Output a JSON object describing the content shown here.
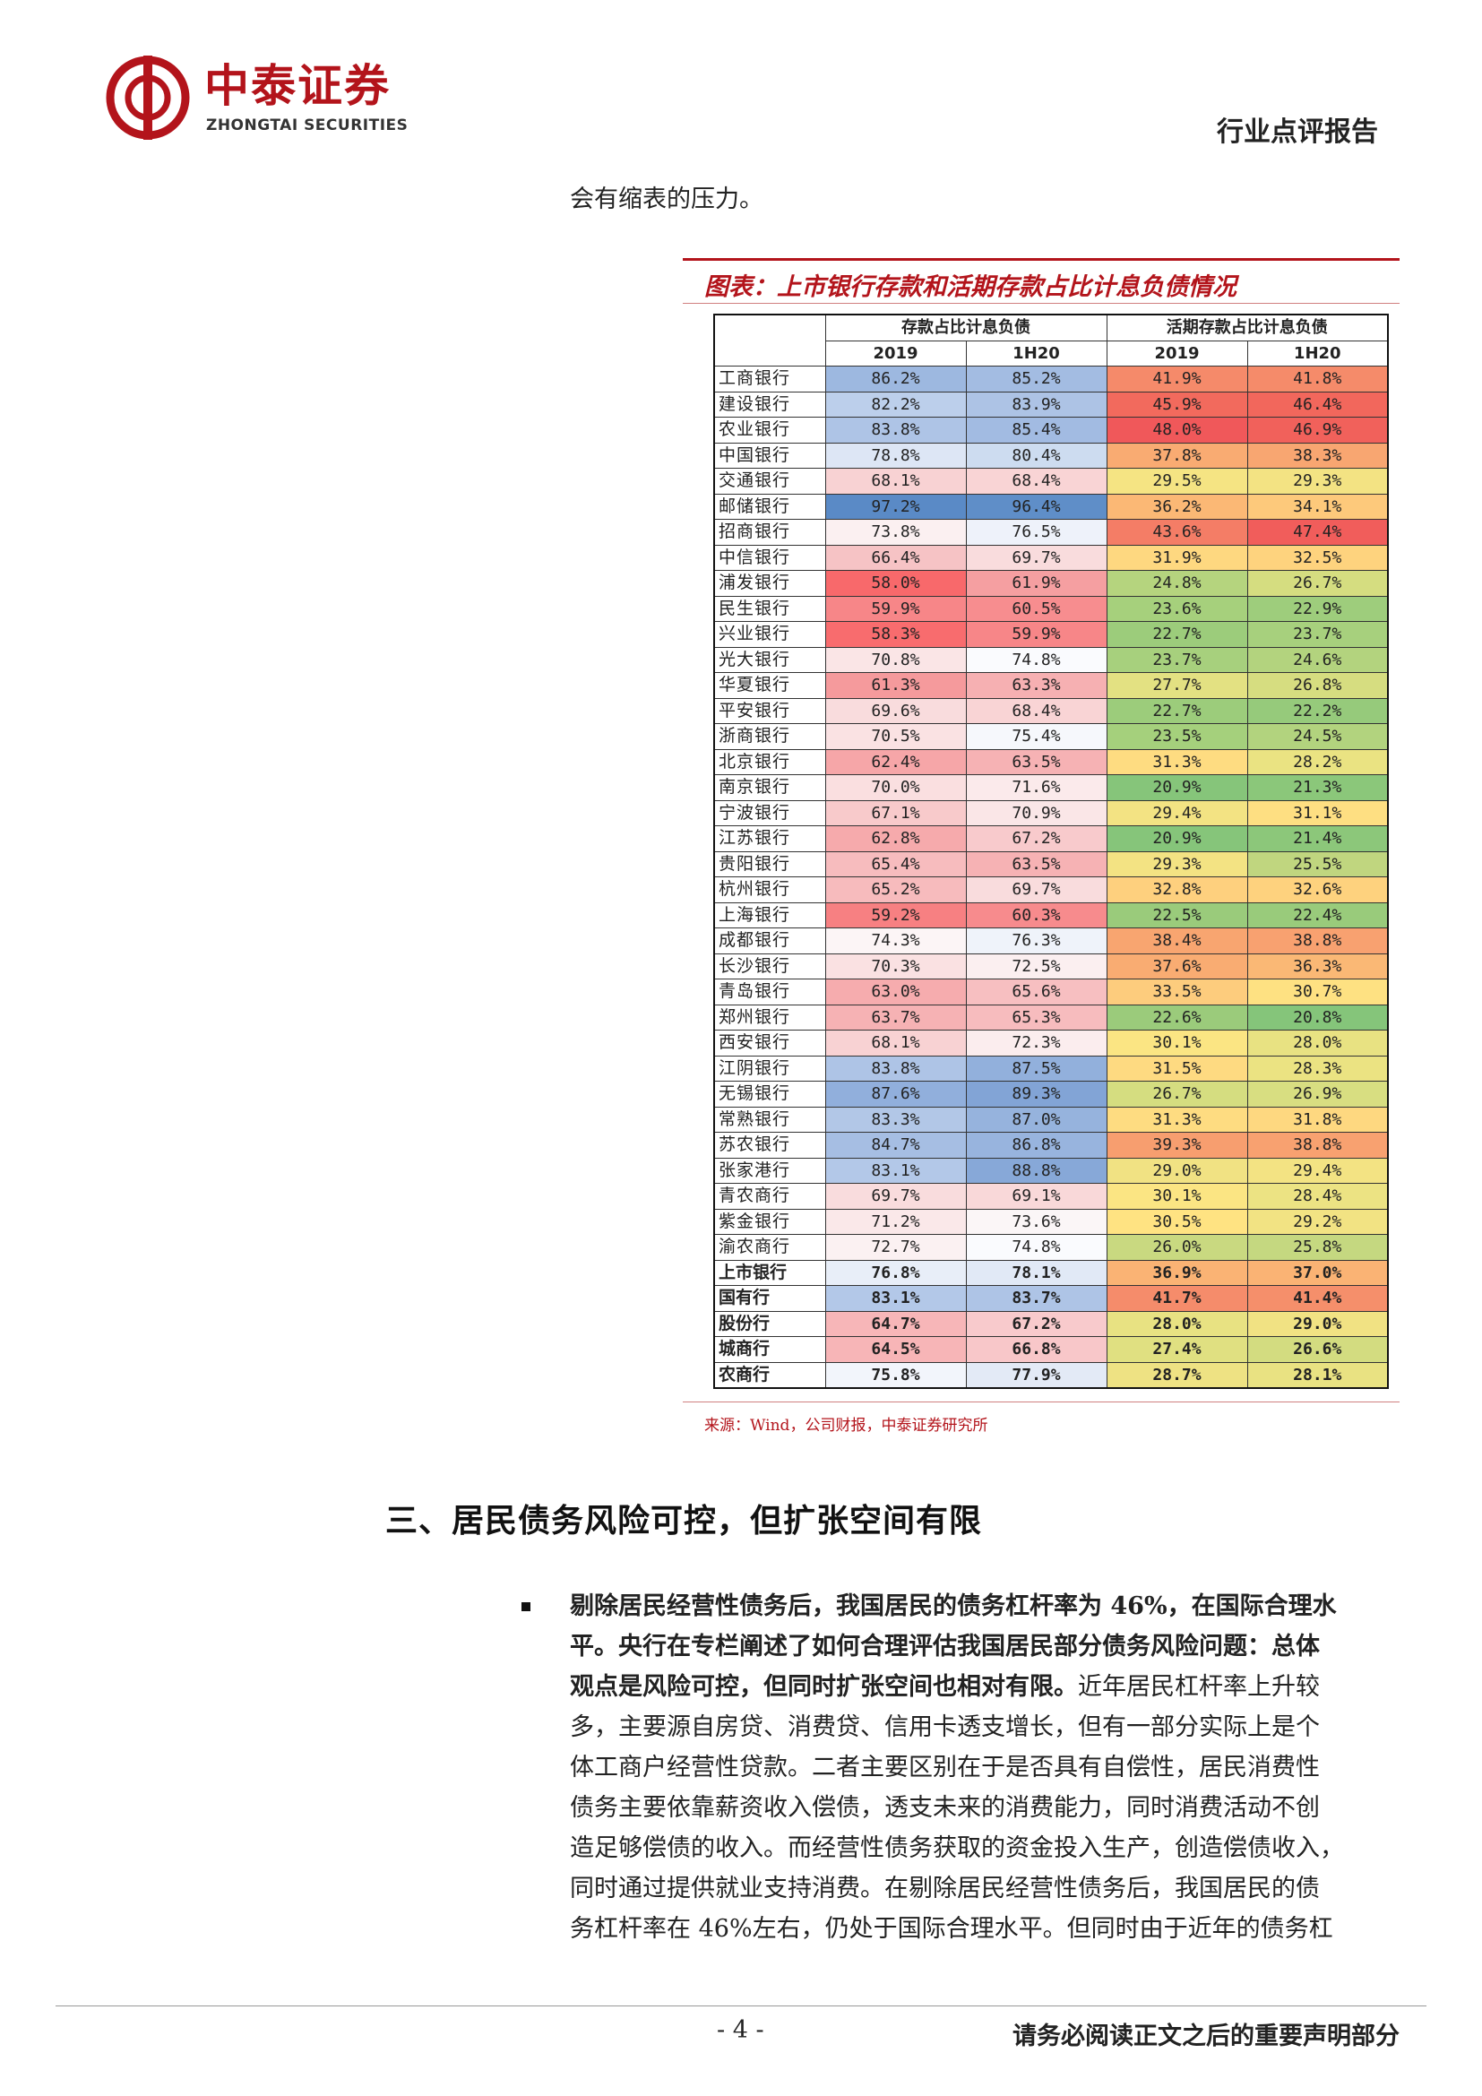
{
  "header": {
    "logo_cn": "中泰证券",
    "logo_en": "ZHONGTAI SECURITIES",
    "report_type": "行业点评报告"
  },
  "intro_line": "会有缩表的压力。",
  "figure": {
    "title": "图表：上市银行存款和活期存款占比计息负债情况",
    "source": "来源：Wind，公司财报，中泰证券研究所",
    "group_headers": [
      "存款占比计息负债",
      "活期存款占比计息负债"
    ],
    "sub_headers": [
      "2019",
      "1H20",
      "2019",
      "1H20"
    ],
    "rows": [
      {
        "bank": "工商银行",
        "values": [
          "86.2%",
          "85.2%",
          "41.9%",
          "41.8%"
        ],
        "colors": [
          "#9db8e0",
          "#a3bce2",
          "#f58a6a",
          "#f58b6a"
        ]
      },
      {
        "bank": "建设银行",
        "values": [
          "82.2%",
          "83.9%",
          "45.9%",
          "46.4%"
        ],
        "colors": [
          "#bccfeb",
          "#adc3e5",
          "#f26a5d",
          "#f2675c"
        ]
      },
      {
        "bank": "农业银行",
        "values": [
          "83.8%",
          "85.4%",
          "48.0%",
          "46.9%"
        ],
        "colors": [
          "#aec4e6",
          "#a2bbe2",
          "#f0585a",
          "#f1615b"
        ]
      },
      {
        "bank": "中国银行",
        "values": [
          "78.8%",
          "80.4%",
          "37.8%",
          "38.3%"
        ],
        "colors": [
          "#dde6f5",
          "#cddcf0",
          "#f9ab72",
          "#f8a671"
        ]
      },
      {
        "bank": "交通银行",
        "values": [
          "68.1%",
          "68.4%",
          "29.5%",
          "29.3%"
        ],
        "colors": [
          "#f8d2d3",
          "#f9d4d5",
          "#f5e483",
          "#f3e383"
        ]
      },
      {
        "bank": "邮储银行",
        "values": [
          "97.2%",
          "96.4%",
          "36.2%",
          "34.1%"
        ],
        "colors": [
          "#5a8ac6",
          "#5f8ec8",
          "#fbb875",
          "#fdc97b"
        ]
      },
      {
        "bank": "招商银行",
        "values": [
          "73.8%",
          "76.5%",
          "43.6%",
          "47.4%"
        ],
        "colors": [
          "#fbf0f1",
          "#eef2fa",
          "#f47d66",
          "#f15d5b"
        ]
      },
      {
        "bank": "中信银行",
        "values": [
          "66.4%",
          "69.7%",
          "31.9%",
          "32.5%"
        ],
        "colors": [
          "#f6c3c5",
          "#f9dcdd",
          "#fed880",
          "#fed37e"
        ]
      },
      {
        "bank": "浦发银行",
        "values": [
          "58.0%",
          "61.9%",
          "24.8%",
          "26.7%"
        ],
        "colors": [
          "#f8696b",
          "#f59fa1",
          "#b5d47e",
          "#d5dd80"
        ]
      },
      {
        "bank": "民生银行",
        "values": [
          "59.9%",
          "60.5%",
          "23.6%",
          "22.9%"
        ],
        "colors": [
          "#f78688",
          "#f78d8f",
          "#a6d07c",
          "#9ecd7c"
        ]
      },
      {
        "bank": "兴业银行",
        "values": [
          "58.3%",
          "59.9%",
          "22.7%",
          "23.7%"
        ],
        "colors": [
          "#f86c6e",
          "#f78688",
          "#9ccc7b",
          "#a7d07d"
        ]
      },
      {
        "bank": "光大银行",
        "values": [
          "70.8%",
          "74.8%",
          "23.7%",
          "24.6%"
        ],
        "colors": [
          "#fae5e6",
          "#fafbfe",
          "#a7d07d",
          "#b3d37e"
        ]
      },
      {
        "bank": "华夏银行",
        "values": [
          "61.3%",
          "63.3%",
          "27.7%",
          "26.8%"
        ],
        "colors": [
          "#f59a9c",
          "#f6b0b2",
          "#e3e182",
          "#d6dd80"
        ]
      },
      {
        "bank": "平安银行",
        "values": [
          "69.6%",
          "68.4%",
          "22.7%",
          "22.2%"
        ],
        "colors": [
          "#f9dcdd",
          "#f9d4d5",
          "#9ccc7b",
          "#96ca7b"
        ]
      },
      {
        "bank": "浙商银行",
        "values": [
          "70.5%",
          "75.4%",
          "23.5%",
          "24.5%"
        ],
        "colors": [
          "#fae2e3",
          "#f6f8fc",
          "#a5d07c",
          "#b2d37e"
        ]
      },
      {
        "bank": "北京银行",
        "values": [
          "62.4%",
          "63.5%",
          "31.3%",
          "28.2%"
        ],
        "colors": [
          "#f6a6a8",
          "#f6b2b4",
          "#fedc81",
          "#eae382"
        ]
      },
      {
        "bank": "南京银行",
        "values": [
          "70.0%",
          "71.6%",
          "20.9%",
          "21.3%"
        ],
        "colors": [
          "#fadfe0",
          "#fbeaeb",
          "#86c57a",
          "#8bc77a"
        ]
      },
      {
        "bank": "宁波银行",
        "values": [
          "67.1%",
          "70.9%",
          "29.4%",
          "31.1%"
        ],
        "colors": [
          "#f8cacb",
          "#fae6e7",
          "#f3e383",
          "#fedf82"
        ]
      },
      {
        "bank": "江苏银行",
        "values": [
          "62.8%",
          "67.2%",
          "20.9%",
          "21.4%"
        ],
        "colors": [
          "#f6aaac",
          "#f8cacc",
          "#86c57a",
          "#8cc77a"
        ]
      },
      {
        "bank": "贵阳银行",
        "values": [
          "65.4%",
          "63.5%",
          "29.3%",
          "25.5%"
        ],
        "colors": [
          "#f7bcbe",
          "#f6b2b4",
          "#f3e383",
          "#c0d67f"
        ]
      },
      {
        "bank": "杭州银行",
        "values": [
          "65.2%",
          "69.7%",
          "32.8%",
          "32.6%"
        ],
        "colors": [
          "#f7bbbd",
          "#f9dcdd",
          "#fed07e",
          "#fed27e"
        ]
      },
      {
        "bank": "上海银行",
        "values": [
          "59.2%",
          "60.3%",
          "22.5%",
          "22.4%"
        ],
        "colors": [
          "#f78082",
          "#f78b8d",
          "#9acb7b",
          "#99cb7b"
        ]
      },
      {
        "bank": "成都银行",
        "values": [
          "74.3%",
          "76.3%",
          "38.4%",
          "38.8%"
        ],
        "colors": [
          "#fcf5f6",
          "#eff3fa",
          "#f8a570",
          "#f8a170"
        ]
      },
      {
        "bank": "长沙银行",
        "values": [
          "70.3%",
          "72.5%",
          "37.6%",
          "36.3%"
        ],
        "colors": [
          "#fae1e2",
          "#fbeff0",
          "#f9ac72",
          "#fab875"
        ]
      },
      {
        "bank": "青岛银行",
        "values": [
          "63.0%",
          "65.6%",
          "33.5%",
          "30.7%"
        ],
        "colors": [
          "#f6acae",
          "#f7bfc1",
          "#fdcc7d",
          "#fee182"
        ]
      },
      {
        "bank": "郑州银行",
        "values": [
          "63.7%",
          "65.3%",
          "22.6%",
          "20.8%"
        ],
        "colors": [
          "#f6b2b4",
          "#f7bcbe",
          "#9bcb7b",
          "#85c57a"
        ]
      },
      {
        "bank": "西安银行",
        "values": [
          "68.1%",
          "72.3%",
          "30.1%",
          "28.0%"
        ],
        "colors": [
          "#f8d2d3",
          "#fbedee",
          "#fbe583",
          "#e8e282"
        ]
      },
      {
        "bank": "江阴银行",
        "values": [
          "83.8%",
          "87.5%",
          "31.5%",
          "28.3%"
        ],
        "colors": [
          "#aec4e6",
          "#92b0dc",
          "#feda81",
          "#ebe382"
        ]
      },
      {
        "bank": "无锡银行",
        "values": [
          "87.6%",
          "89.3%",
          "26.7%",
          "26.9%"
        ],
        "colors": [
          "#91afdc",
          "#82a4d6",
          "#d5dd80",
          "#d8de81"
        ]
      },
      {
        "bank": "常熟银行",
        "values": [
          "83.3%",
          "87.0%",
          "31.3%",
          "31.8%"
        ],
        "colors": [
          "#b2c7e7",
          "#96b3dd",
          "#fedc81",
          "#fed880"
        ]
      },
      {
        "bank": "苏农银行",
        "values": [
          "84.7%",
          "86.8%",
          "39.3%",
          "38.8%"
        ],
        "colors": [
          "#a6bee3",
          "#98b4de",
          "#f79e6f",
          "#f8a170"
        ]
      },
      {
        "bank": "张家港行",
        "values": [
          "83.1%",
          "88.8%",
          "29.0%",
          "29.4%"
        ],
        "colors": [
          "#b3c8e8",
          "#87a8d8",
          "#f1e283",
          "#f3e383"
        ]
      },
      {
        "bank": "青农商行",
        "values": [
          "69.7%",
          "69.1%",
          "30.1%",
          "28.4%"
        ],
        "colors": [
          "#f9dcdd",
          "#f9d8d9",
          "#fbe583",
          "#ece383"
        ]
      },
      {
        "bank": "紫金银行",
        "values": [
          "71.2%",
          "73.6%",
          "30.5%",
          "29.2%"
        ],
        "colors": [
          "#fae8e9",
          "#fbf6f7",
          "#ffe382",
          "#f2e383"
        ]
      },
      {
        "bank": "渝农商行",
        "values": [
          "72.7%",
          "74.8%",
          "26.0%",
          "25.8%"
        ],
        "colors": [
          "#fbf1f2",
          "#fafbfe",
          "#c9d980",
          "#c5d880"
        ]
      },
      {
        "bank": "上市银行",
        "values": [
          "76.8%",
          "78.1%",
          "36.9%",
          "37.0%"
        ],
        "colors": [
          "#e8eef8",
          "#e1e9f6",
          "#fab374",
          "#fab374"
        ]
      },
      {
        "bank": "国有行",
        "values": [
          "83.1%",
          "83.7%",
          "41.7%",
          "41.4%"
        ],
        "colors": [
          "#b3c8e8",
          "#aec4e6",
          "#f58c6b",
          "#f58f6b"
        ]
      },
      {
        "bank": "股份行",
        "values": [
          "64.7%",
          "67.2%",
          "28.0%",
          "29.0%"
        ],
        "colors": [
          "#f7b6b8",
          "#f8cacc",
          "#e8e282",
          "#f1e283"
        ]
      },
      {
        "bank": "城商行",
        "values": [
          "64.5%",
          "66.8%",
          "27.4%",
          "26.6%"
        ],
        "colors": [
          "#f7b5b7",
          "#f8c7c9",
          "#e0e081",
          "#d3dc80"
        ]
      },
      {
        "bank": "农商行",
        "values": [
          "75.8%",
          "77.9%",
          "28.7%",
          "28.1%"
        ],
        "colors": [
          "#f2f5fb",
          "#e3eaf6",
          "#eee283",
          "#e9e282"
        ]
      }
    ],
    "summary_start_index": 35
  },
  "section_title": "三、居民债务风险可控，但扩张空间有限",
  "bullet_paragraph": {
    "lines": [
      [
        {
          "t": "剔除居民经营性债务后，我国居民的债务杠杆率为 46%，在国际合理水",
          "b": true
        }
      ],
      [
        {
          "t": "平。央行在专栏阐述了如何合理评估我国居民部分债务风险问题：总体",
          "b": true
        }
      ],
      [
        {
          "t": "观点是风险可控，但同时扩张空间也相对有限。",
          "b": true
        },
        {
          "t": "近年居民杠杆率上升较",
          "b": false
        }
      ],
      [
        {
          "t": "多，主要源自房贷、消费贷、信用卡透支增长，但有一部分实际上是个",
          "b": false
        }
      ],
      [
        {
          "t": "体工商户经营性贷款。二者主要区别在于是否具有自偿性，居民消费性",
          "b": false
        }
      ],
      [
        {
          "t": "债务主要依靠薪资收入偿债，透支未来的消费能力，同时消费活动不创",
          "b": false
        }
      ],
      [
        {
          "t": "造足够偿债的收入。而经营性债务获取的资金投入生产，创造偿债收入，",
          "b": false
        }
      ],
      [
        {
          "t": "同时通过提供就业支持消费。在剔除居民经营性债务后，我国居民的债",
          "b": false
        }
      ],
      [
        {
          "t": "务杠杆率在 46%左右，仍处于国际合理水平。但同时由于近年的债务杠",
          "b": false
        }
      ]
    ]
  },
  "footer": {
    "page_number": "- 4 -",
    "disclaimer": "请务必阅读正文之后的重要声明部分"
  },
  "colors": {
    "brand_red": "#b3141b"
  }
}
